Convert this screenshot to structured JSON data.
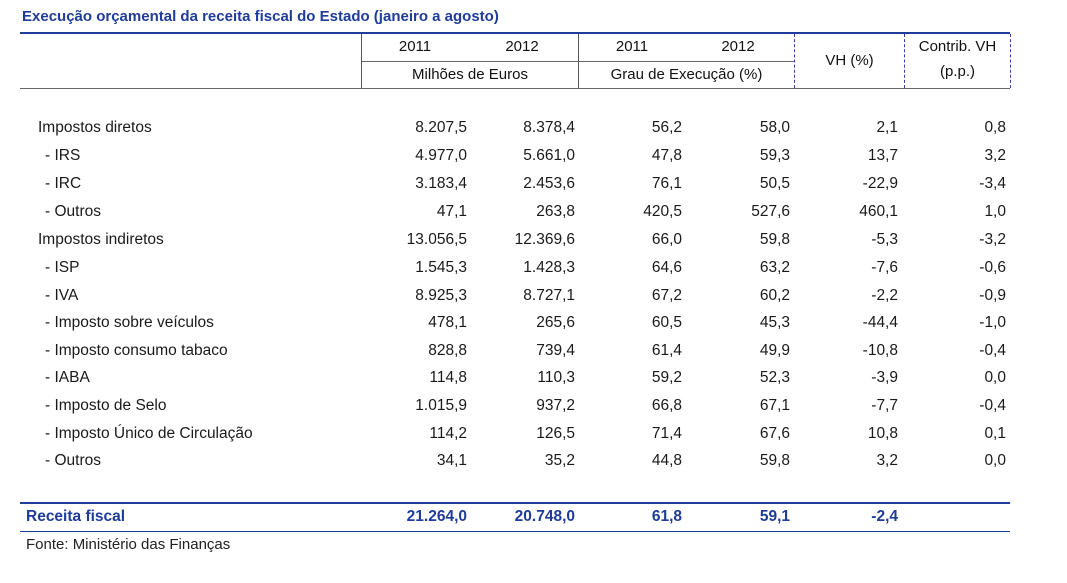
{
  "title": "Execução orçamental da receita fiscal do Estado (janeiro a agosto)",
  "header": {
    "year_2011_a": "2011",
    "year_2012_a": "2012",
    "unit_a": "Milhões de Euros",
    "year_2011_b": "2011",
    "year_2012_b": "2012",
    "unit_b": "Grau de Execução (%)",
    "vh": "VH (%)",
    "contrib_line1": "Contrib. VH",
    "contrib_line2": "(p.p.)"
  },
  "rows": [
    {
      "label": "Impostos diretos",
      "v2011": "8.207,5",
      "v2012": "8.378,4",
      "g2011": "56,2",
      "g2012": "58,0",
      "vh": "2,1",
      "contrib": "0,8"
    },
    {
      "label": "- IRS",
      "v2011": "4.977,0",
      "v2012": "5.661,0",
      "g2011": "47,8",
      "g2012": "59,3",
      "vh": "13,7",
      "contrib": "3,2"
    },
    {
      "label": "- IRC",
      "v2011": "3.183,4",
      "v2012": "2.453,6",
      "g2011": "76,1",
      "g2012": "50,5",
      "vh": "-22,9",
      "contrib": "-3,4"
    },
    {
      "label": "- Outros",
      "v2011": "47,1",
      "v2012": "263,8",
      "g2011": "420,5",
      "g2012": "527,6",
      "vh": "460,1",
      "contrib": "1,0"
    },
    {
      "label": "Impostos indiretos",
      "v2011": "13.056,5",
      "v2012": "12.369,6",
      "g2011": "66,0",
      "g2012": "59,8",
      "vh": "-5,3",
      "contrib": "-3,2"
    },
    {
      "label": "- ISP",
      "v2011": "1.545,3",
      "v2012": "1.428,3",
      "g2011": "64,6",
      "g2012": "63,2",
      "vh": "-7,6",
      "contrib": "-0,6"
    },
    {
      "label": "- IVA",
      "v2011": "8.925,3",
      "v2012": "8.727,1",
      "g2011": "67,2",
      "g2012": "60,2",
      "vh": "-2,2",
      "contrib": "-0,9"
    },
    {
      "label": "- Imposto sobre veículos",
      "v2011": "478,1",
      "v2012": "265,6",
      "g2011": "60,5",
      "g2012": "45,3",
      "vh": "-44,4",
      "contrib": "-1,0"
    },
    {
      "label": "- Imposto consumo tabaco",
      "v2011": "828,8",
      "v2012": "739,4",
      "g2011": "61,4",
      "g2012": "49,9",
      "vh": "-10,8",
      "contrib": "-0,4"
    },
    {
      "label": "- IABA",
      "v2011": "114,8",
      "v2012": "110,3",
      "g2011": "59,2",
      "g2012": "52,3",
      "vh": "-3,9",
      "contrib": "0,0"
    },
    {
      "label": "- Imposto de Selo",
      "v2011": "1.015,9",
      "v2012": "937,2",
      "g2011": "66,8",
      "g2012": "67,1",
      "vh": "-7,7",
      "contrib": "-0,4"
    },
    {
      "label": "- Imposto Único de Circulação",
      "v2011": "114,2",
      "v2012": "126,5",
      "g2011": "71,4",
      "g2012": "67,6",
      "vh": "10,8",
      "contrib": "0,1"
    },
    {
      "label": "- Outros",
      "v2011": "34,1",
      "v2012": "35,2",
      "g2011": "44,8",
      "g2012": "59,8",
      "vh": "3,2",
      "contrib": "0,0"
    }
  ],
  "total": {
    "label": "Receita fiscal",
    "v2011": "21.264,0",
    "v2012": "20.748,0",
    "g2011": "61,8",
    "g2012": "59,1",
    "vh": "-2,4",
    "contrib": ""
  },
  "source": "Fonte: Ministério das Finanças"
}
